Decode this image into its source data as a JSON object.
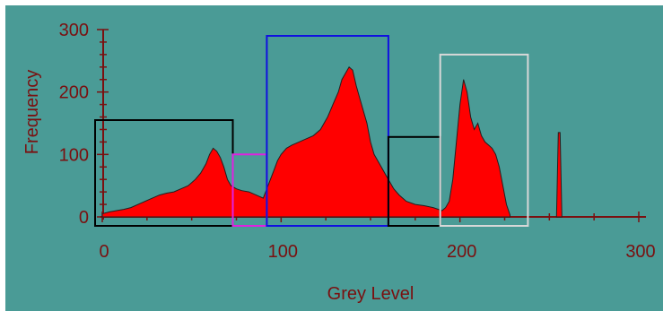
{
  "chart_data": {
    "type": "area",
    "xlabel": "Grey Level",
    "ylabel": "Frequency",
    "xlim": [
      0,
      300
    ],
    "ylim": [
      0,
      300
    ],
    "x_ticks": [
      0,
      100,
      200,
      300
    ],
    "y_ticks": [
      0,
      100,
      200,
      300
    ],
    "grid": false,
    "series": [
      {
        "fill_color": "#ff0000",
        "edge_color": "#202020",
        "x": [
          0,
          4,
          8,
          12,
          16,
          20,
          24,
          28,
          32,
          36,
          40,
          44,
          48,
          52,
          55,
          58,
          60,
          62,
          64,
          66,
          68,
          70,
          72,
          75,
          78,
          82,
          86,
          90,
          92,
          94,
          96,
          98,
          100,
          103,
          106,
          110,
          114,
          118,
          122,
          126,
          129,
          132,
          134,
          136,
          138,
          140,
          142,
          144,
          146,
          148,
          150,
          152,
          154,
          156,
          158,
          160,
          163,
          166,
          170,
          175,
          180,
          185,
          188,
          190,
          192,
          194,
          196,
          198,
          200,
          202,
          204,
          206,
          208,
          210,
          212,
          214,
          216,
          218,
          220,
          222,
          224,
          226,
          228
        ],
        "values": [
          5,
          8,
          10,
          12,
          15,
          20,
          25,
          30,
          35,
          38,
          40,
          45,
          50,
          60,
          70,
          85,
          100,
          110,
          105,
          95,
          80,
          60,
          50,
          45,
          42,
          40,
          35,
          30,
          45,
          60,
          75,
          90,
          100,
          110,
          115,
          120,
          125,
          130,
          140,
          160,
          180,
          200,
          220,
          230,
          240,
          235,
          210,
          190,
          170,
          150,
          120,
          100,
          90,
          80,
          70,
          60,
          45,
          35,
          25,
          20,
          18,
          15,
          12,
          10,
          15,
          25,
          60,
          120,
          180,
          220,
          200,
          160,
          140,
          150,
          130,
          120,
          115,
          110,
          100,
          80,
          50,
          20,
          3
        ]
      },
      {
        "fill_color": "#ff0000",
        "edge_color": "#202020",
        "x": [
          254,
          255,
          256,
          257
        ],
        "values": [
          0,
          135,
          135,
          0
        ]
      }
    ],
    "annotations": [
      {
        "shape": "rectangle",
        "color": "#000000",
        "x_range": [
          -4,
          73
        ],
        "y_range": [
          0,
          155
        ]
      },
      {
        "shape": "rectangle",
        "color": "#e020e0",
        "x_range": [
          73,
          92
        ],
        "y_range": [
          0,
          100
        ]
      },
      {
        "shape": "rectangle",
        "color": "#1010e0",
        "x_range": [
          92,
          160
        ],
        "y_range": [
          0,
          290
        ]
      },
      {
        "shape": "rectangle",
        "color": "#000000",
        "x_range": [
          160,
          189
        ],
        "y_range": [
          0,
          128
        ]
      },
      {
        "shape": "rectangle",
        "color": "#d8d8d8",
        "x_range": [
          189,
          238
        ],
        "y_range": [
          0,
          260
        ]
      }
    ],
    "colors": {
      "background": "#4a9b96",
      "axis": "#7a1010"
    }
  }
}
